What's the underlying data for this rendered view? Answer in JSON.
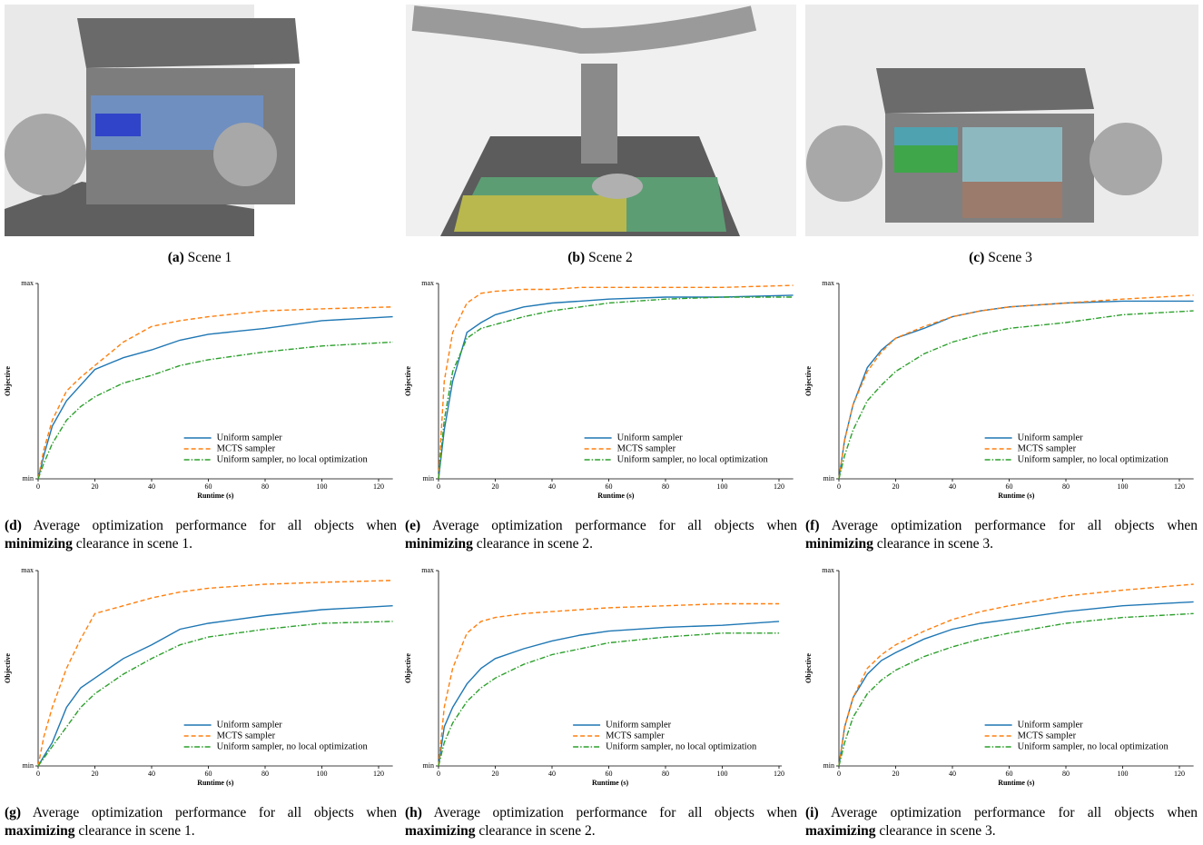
{
  "scenes": [
    {
      "label": "(a)",
      "caption": "Scene 1"
    },
    {
      "label": "(b)",
      "caption": "Scene 2"
    },
    {
      "label": "(c)",
      "caption": "Scene 3"
    }
  ],
  "chart_data": [
    {
      "type": "line",
      "label": "(d)",
      "caption": [
        "Average optimization performance for all objects when ",
        "minimizing",
        " clearance in scene 1."
      ],
      "x_label": "Runtime (s)",
      "y_label": "Objective",
      "xlim": [
        0,
        125
      ],
      "xticks": [
        0,
        20,
        40,
        60,
        80,
        100,
        120
      ],
      "ylim": [
        0,
        1
      ],
      "yticks": [
        {
          "value": 0,
          "label": "min"
        },
        {
          "value": 1,
          "label": "max"
        }
      ],
      "legend": "lower right",
      "x": [
        0,
        2,
        5,
        10,
        15,
        20,
        30,
        40,
        50,
        60,
        80,
        100,
        125
      ],
      "series": [
        {
          "name": "Uniform sampler",
          "color": "#1f77b4",
          "linestyle": "solid",
          "values": [
            0,
            0.12,
            0.27,
            0.4,
            0.48,
            0.56,
            0.62,
            0.66,
            0.71,
            0.74,
            0.77,
            0.81,
            0.83
          ]
        },
        {
          "name": "MCTS sampler",
          "color": "#ff7f0e",
          "linestyle": "dashed",
          "values": [
            0,
            0.15,
            0.3,
            0.45,
            0.52,
            0.58,
            0.7,
            0.78,
            0.81,
            0.83,
            0.86,
            0.87,
            0.88
          ]
        },
        {
          "name": "Uniform sampler, no local optimization",
          "color": "#2ca02c",
          "linestyle": "dashdot",
          "values": [
            0,
            0.08,
            0.18,
            0.3,
            0.37,
            0.42,
            0.49,
            0.53,
            0.58,
            0.61,
            0.65,
            0.68,
            0.7
          ]
        }
      ]
    },
    {
      "type": "line",
      "label": "(e)",
      "caption": [
        "Average optimization performance for all objects when ",
        "minimizing",
        " clearance in scene 2."
      ],
      "x_label": "Runtime (s)",
      "y_label": "Objective",
      "xlim": [
        0,
        125
      ],
      "xticks": [
        0,
        20,
        40,
        60,
        80,
        100,
        120
      ],
      "ylim": [
        0,
        1
      ],
      "yticks": [
        {
          "value": 0,
          "label": "min"
        },
        {
          "value": 1,
          "label": "max"
        }
      ],
      "legend": "lower right",
      "x": [
        0,
        2,
        5,
        10,
        15,
        20,
        30,
        40,
        50,
        60,
        80,
        100,
        125
      ],
      "series": [
        {
          "name": "Uniform sampler",
          "color": "#1f77b4",
          "linestyle": "solid",
          "values": [
            0,
            0.25,
            0.5,
            0.75,
            0.8,
            0.84,
            0.88,
            0.9,
            0.91,
            0.92,
            0.93,
            0.93,
            0.94
          ]
        },
        {
          "name": "MCTS sampler",
          "color": "#ff7f0e",
          "linestyle": "dashed",
          "values": [
            0,
            0.5,
            0.75,
            0.9,
            0.95,
            0.96,
            0.97,
            0.97,
            0.98,
            0.98,
            0.98,
            0.98,
            0.99
          ]
        },
        {
          "name": "Uniform sampler, no local optimization",
          "color": "#2ca02c",
          "linestyle": "dashdot",
          "values": [
            0,
            0.3,
            0.55,
            0.72,
            0.77,
            0.79,
            0.83,
            0.86,
            0.88,
            0.9,
            0.92,
            0.93,
            0.93
          ]
        }
      ]
    },
    {
      "type": "line",
      "label": "(f)",
      "caption": [
        "Average optimization performance for all objects when ",
        "minimizing",
        " clearance in scene 3."
      ],
      "x_label": "Runtime (s)",
      "y_label": "Objective",
      "xlim": [
        0,
        125
      ],
      "xticks": [
        0,
        20,
        40,
        60,
        80,
        100,
        120
      ],
      "ylim": [
        0,
        1
      ],
      "yticks": [
        {
          "value": 0,
          "label": "min"
        },
        {
          "value": 1,
          "label": "max"
        }
      ],
      "legend": "lower right",
      "x": [
        0,
        2,
        5,
        10,
        15,
        20,
        30,
        40,
        50,
        60,
        80,
        100,
        125
      ],
      "series": [
        {
          "name": "Uniform sampler",
          "color": "#1f77b4",
          "linestyle": "solid",
          "values": [
            0,
            0.2,
            0.38,
            0.57,
            0.66,
            0.72,
            0.77,
            0.83,
            0.86,
            0.88,
            0.9,
            0.91,
            0.91
          ]
        },
        {
          "name": "MCTS sampler",
          "color": "#ff7f0e",
          "linestyle": "dashed",
          "values": [
            0,
            0.2,
            0.38,
            0.55,
            0.65,
            0.72,
            0.78,
            0.83,
            0.86,
            0.88,
            0.9,
            0.92,
            0.94
          ]
        },
        {
          "name": "Uniform sampler, no local optimization",
          "color": "#2ca02c",
          "linestyle": "dashdot",
          "values": [
            0,
            0.12,
            0.25,
            0.4,
            0.48,
            0.55,
            0.64,
            0.7,
            0.74,
            0.77,
            0.8,
            0.84,
            0.86
          ]
        }
      ]
    },
    {
      "type": "line",
      "label": "(g)",
      "caption": [
        "Average optimization performance for all objects when ",
        "maximizing",
        " clearance in scene 1."
      ],
      "x_label": "Runtime (s)",
      "y_label": "Objective",
      "xlim": [
        0,
        125
      ],
      "xticks": [
        0,
        20,
        40,
        60,
        80,
        100,
        120
      ],
      "ylim": [
        0,
        1
      ],
      "yticks": [
        {
          "value": 0,
          "label": "min"
        },
        {
          "value": 1,
          "label": "max"
        }
      ],
      "legend": "lower right",
      "x": [
        0,
        2,
        5,
        10,
        15,
        20,
        30,
        40,
        50,
        60,
        80,
        100,
        125
      ],
      "series": [
        {
          "name": "Uniform sampler",
          "color": "#1f77b4",
          "linestyle": "solid",
          "values": [
            0,
            0.05,
            0.12,
            0.3,
            0.4,
            0.45,
            0.55,
            0.62,
            0.7,
            0.73,
            0.77,
            0.8,
            0.82
          ]
        },
        {
          "name": "MCTS sampler",
          "color": "#ff7f0e",
          "linestyle": "dashed",
          "values": [
            0,
            0.15,
            0.3,
            0.5,
            0.65,
            0.78,
            0.82,
            0.86,
            0.89,
            0.91,
            0.93,
            0.94,
            0.95
          ]
        },
        {
          "name": "Uniform sampler, no local optimization",
          "color": "#2ca02c",
          "linestyle": "dashdot",
          "values": [
            0,
            0.04,
            0.1,
            0.2,
            0.3,
            0.37,
            0.47,
            0.55,
            0.62,
            0.66,
            0.7,
            0.73,
            0.74
          ]
        }
      ]
    },
    {
      "type": "line",
      "label": "(h)",
      "caption": [
        "Average optimization performance for all objects when ",
        "maximizing",
        " clearance in scene 2."
      ],
      "x_label": "Runtime (s)",
      "y_label": "Objective",
      "xlim": [
        0,
        121
      ],
      "xticks": [
        0,
        20,
        40,
        60,
        80,
        100,
        120
      ],
      "ylim": [
        0,
        1
      ],
      "yticks": [
        {
          "value": 0,
          "label": "min"
        },
        {
          "value": 1,
          "label": "max"
        }
      ],
      "legend": "lower right",
      "x": [
        0,
        2,
        5,
        10,
        15,
        20,
        30,
        40,
        50,
        60,
        80,
        100,
        120
      ],
      "series": [
        {
          "name": "Uniform sampler",
          "color": "#1f77b4",
          "linestyle": "solid",
          "values": [
            0,
            0.2,
            0.3,
            0.42,
            0.5,
            0.55,
            0.6,
            0.64,
            0.67,
            0.69,
            0.71,
            0.72,
            0.74
          ]
        },
        {
          "name": "MCTS sampler",
          "color": "#ff7f0e",
          "linestyle": "dashed",
          "values": [
            0,
            0.3,
            0.5,
            0.68,
            0.74,
            0.76,
            0.78,
            0.79,
            0.8,
            0.81,
            0.82,
            0.83,
            0.83
          ]
        },
        {
          "name": "Uniform sampler, no local optimization",
          "color": "#2ca02c",
          "linestyle": "dashdot",
          "values": [
            0,
            0.12,
            0.22,
            0.33,
            0.4,
            0.45,
            0.52,
            0.57,
            0.6,
            0.63,
            0.66,
            0.68,
            0.68
          ]
        }
      ]
    },
    {
      "type": "line",
      "label": "(i)",
      "caption": [
        "Average optimization performance for all objects when ",
        "maximizing",
        " clearance in scene 3."
      ],
      "x_label": "Runtime (s)",
      "y_label": "Objective",
      "xlim": [
        0,
        125
      ],
      "xticks": [
        0,
        20,
        40,
        60,
        80,
        100,
        120
      ],
      "ylim": [
        0,
        1
      ],
      "yticks": [
        {
          "value": 0,
          "label": "min"
        },
        {
          "value": 1,
          "label": "max"
        }
      ],
      "legend": "lower right",
      "x": [
        0,
        2,
        5,
        10,
        15,
        20,
        30,
        40,
        50,
        60,
        80,
        100,
        125
      ],
      "series": [
        {
          "name": "Uniform sampler",
          "color": "#1f77b4",
          "linestyle": "solid",
          "values": [
            0,
            0.2,
            0.35,
            0.47,
            0.54,
            0.58,
            0.65,
            0.7,
            0.73,
            0.75,
            0.79,
            0.82,
            0.84
          ]
        },
        {
          "name": "MCTS sampler",
          "color": "#ff7f0e",
          "linestyle": "dashed",
          "values": [
            0,
            0.2,
            0.35,
            0.5,
            0.57,
            0.62,
            0.69,
            0.75,
            0.79,
            0.82,
            0.87,
            0.9,
            0.93
          ]
        },
        {
          "name": "Uniform sampler, no local optimization",
          "color": "#2ca02c",
          "linestyle": "dashdot",
          "values": [
            0,
            0.12,
            0.25,
            0.37,
            0.44,
            0.49,
            0.56,
            0.61,
            0.65,
            0.68,
            0.73,
            0.76,
            0.78
          ]
        }
      ]
    }
  ]
}
